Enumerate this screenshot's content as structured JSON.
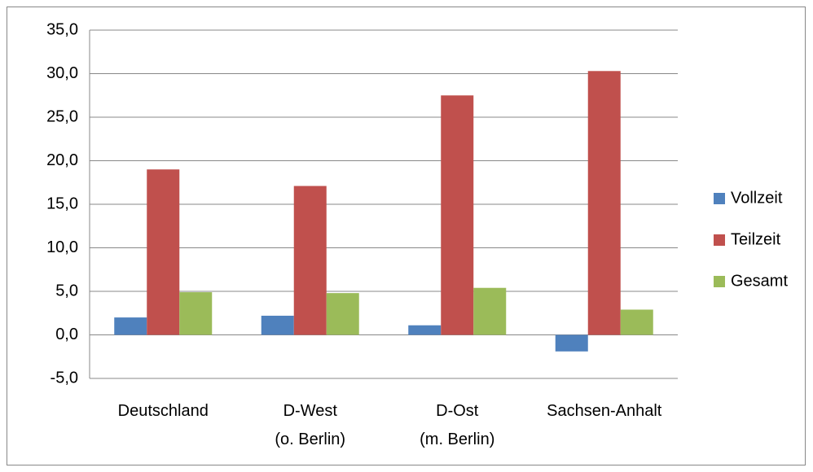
{
  "chart_data": {
    "type": "bar",
    "categories": [
      "Deutschland",
      "D-West\n(o. Berlin)",
      "D-Ost\n(m. Berlin)",
      "Sachsen-Anhalt"
    ],
    "series": [
      {
        "name": "Vollzeit",
        "color": "#4f81bd",
        "values": [
          2.0,
          2.2,
          1.1,
          -1.9
        ]
      },
      {
        "name": "Teilzeit",
        "color": "#c0504d",
        "values": [
          19.0,
          17.1,
          27.5,
          30.3
        ]
      },
      {
        "name": "Gesamt",
        "color": "#9bbb59",
        "values": [
          4.9,
          4.8,
          5.4,
          2.9
        ]
      }
    ],
    "ylim": [
      -5,
      35
    ],
    "yticks": [
      {
        "value": -5,
        "label": "-5,0"
      },
      {
        "value": 0,
        "label": "0,0"
      },
      {
        "value": 5,
        "label": "5,0"
      },
      {
        "value": 10,
        "label": "10,0"
      },
      {
        "value": 15,
        "label": "15,0"
      },
      {
        "value": 20,
        "label": "20,0"
      },
      {
        "value": 25,
        "label": "25,0"
      },
      {
        "value": 30,
        "label": "30,0"
      },
      {
        "value": 35,
        "label": "35,0"
      }
    ],
    "grid": true,
    "legend": "right"
  }
}
